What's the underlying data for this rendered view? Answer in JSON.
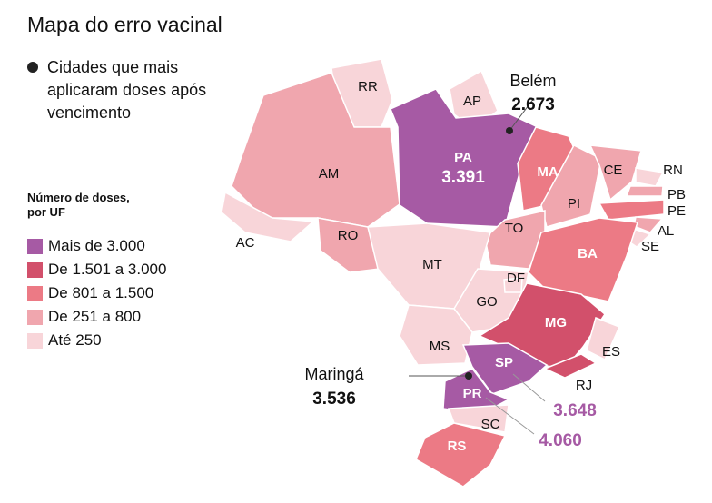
{
  "title": "Mapa do erro vacinal",
  "marker_note": "Cidades que mais aplicaram doses após vencimento",
  "legend": {
    "title": "Número de doses, por UF",
    "items": [
      {
        "label": "Mais de 3.000",
        "color": "#a65aa4"
      },
      {
        "label": "De 1.501 a 3.000",
        "color": "#d2506b"
      },
      {
        "label": "De 801 a 1.500",
        "color": "#ec7a85"
      },
      {
        "label": "De 251 a 800",
        "color": "#f0a6ae"
      },
      {
        "label": "Até 250",
        "color": "#f8d5d9"
      }
    ]
  },
  "states": [
    {
      "label": "RR",
      "color": "#f8d5d9"
    },
    {
      "label": "AP",
      "color": "#f8d5d9"
    },
    {
      "label": "AM",
      "color": "#f0a6ae"
    },
    {
      "label": "AC",
      "color": "#f8d5d9"
    },
    {
      "label": "RO",
      "color": "#f0a6ae"
    },
    {
      "label": "PA",
      "color": "#a65aa4",
      "value": "3.391"
    },
    {
      "label": "MA",
      "color": "#ec7a85"
    },
    {
      "label": "PI",
      "color": "#f0a6ae"
    },
    {
      "label": "CE",
      "color": "#f0a6ae"
    },
    {
      "label": "RN",
      "color": "#f8d5d9"
    },
    {
      "label": "PB",
      "color": "#f0a6ae"
    },
    {
      "label": "PE",
      "color": "#ec7a85"
    },
    {
      "label": "AL",
      "color": "#f0a6ae"
    },
    {
      "label": "SE",
      "color": "#f8d5d9"
    },
    {
      "label": "TO",
      "color": "#f0a6ae"
    },
    {
      "label": "BA",
      "color": "#ec7a85"
    },
    {
      "label": "MT",
      "color": "#f8d5d9"
    },
    {
      "label": "GO",
      "color": "#f8d5d9"
    },
    {
      "label": "DF",
      "color": "#f8d5d9"
    },
    {
      "label": "MG",
      "color": "#d2506b"
    },
    {
      "label": "ES",
      "color": "#f8d5d9"
    },
    {
      "label": "RJ",
      "color": "#d2506b"
    },
    {
      "label": "MS",
      "color": "#f8d5d9"
    },
    {
      "label": "SP",
      "color": "#a65aa4",
      "value": "3.648"
    },
    {
      "label": "PR",
      "color": "#a65aa4",
      "value": "4.060"
    },
    {
      "label": "SC",
      "color": "#f8d5d9"
    },
    {
      "label": "RS",
      "color": "#ec7a85"
    }
  ],
  "cities": [
    {
      "name": "Belém",
      "value": "2.673"
    },
    {
      "name": "Maringá",
      "value": "3.536"
    }
  ]
}
